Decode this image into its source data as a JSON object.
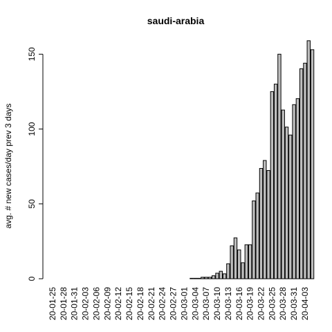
{
  "chart_data": {
    "type": "bar",
    "title": "saudi-arabia",
    "y_label": "avg. # new cases/day prev  3  days",
    "categories": [
      "20-01-25",
      null,
      null,
      "20-01-28",
      null,
      null,
      "20-01-31",
      null,
      null,
      "20-02-03",
      null,
      null,
      "20-02-06",
      null,
      null,
      "20-02-09",
      null,
      null,
      "20-02-12",
      null,
      null,
      "20-02-15",
      null,
      null,
      "20-02-18",
      null,
      null,
      "20-02-21",
      null,
      null,
      "20-02-24",
      null,
      null,
      "20-02-27",
      null,
      null,
      "20-03-01",
      null,
      null,
      "20-03-04",
      null,
      null,
      "20-03-07",
      null,
      null,
      "20-03-10",
      null,
      null,
      "20-03-13",
      null,
      null,
      "20-03-16",
      null,
      null,
      "20-03-19",
      null,
      null,
      "20-03-22",
      null,
      null,
      "20-03-25",
      null,
      null,
      "20-03-28",
      null,
      null,
      "20-03-31",
      null,
      null,
      "20-04-03",
      null,
      null
    ],
    "values": [
      0,
      0,
      0,
      0,
      0,
      0,
      0,
      0,
      0,
      0,
      0,
      0,
      0,
      0,
      0,
      0,
      0,
      0,
      0,
      0,
      0,
      0,
      0,
      0,
      0,
      0,
      0,
      0,
      0,
      0,
      0,
      0,
      0,
      0,
      0,
      0,
      0,
      0,
      0.3,
      0.3,
      0.3,
      1,
      1,
      1,
      2,
      3.7,
      5,
      3.3,
      10,
      22,
      27.3,
      19.3,
      10.7,
      22.7,
      22.7,
      52,
      57.3,
      73.7,
      79,
      72.3,
      125,
      130,
      150,
      112.7,
      101.3,
      96,
      116.3,
      120.3,
      140.3,
      144,
      159,
      153
    ],
    "color": "#bebebe",
    "ylim": [
      0,
      165.4
    ],
    "yticks": [
      0,
      50,
      100,
      150
    ]
  }
}
